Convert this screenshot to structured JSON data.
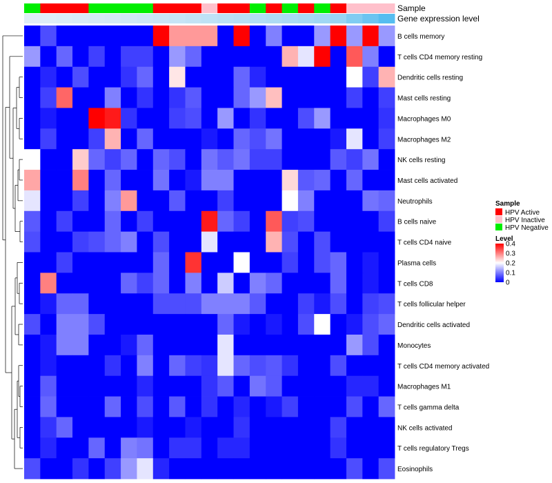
{
  "chart_data": {
    "type": "heatmap",
    "title": "",
    "annotation_rows": [
      "Sample",
      "Gene expression level"
    ],
    "row_labels": [
      "B cells memory",
      "T cells CD4 memory resting",
      "Dendritic cells resting",
      "Mast cells resting",
      "Macrophages M0",
      "Macrophages M2",
      "NK cells resting",
      "Mast cells activated",
      "Neutrophils",
      "B cells naive",
      "T cells CD4 naive",
      "Plasma cells",
      "T cells CD8",
      "T cells follicular helper",
      "Dendritic cells activated",
      "Monocytes",
      "T cells CD4 memory activated",
      "Macrophages M1",
      "T cells gamma delta",
      "NK cells activated",
      "T cells regulatory  Tregs",
      "Eosinophils"
    ],
    "sample_annotation": [
      "HPV Negative",
      "HPV Active",
      "HPV Active",
      "HPV Active",
      "HPV Negative",
      "HPV Negative",
      "HPV Negative",
      "HPV Negative",
      "HPV Active",
      "HPV Active",
      "HPV Active",
      "HPV Inactive",
      "HPV Active",
      "HPV Active",
      "HPV Negative",
      "HPV Active",
      "HPV Negative",
      "HPV Active",
      "HPV Negative",
      "HPV Active",
      "HPV Inactive",
      "HPV Inactive",
      "HPV Inactive"
    ],
    "expression_annotation": [
      0.02,
      0.03,
      0.05,
      0.07,
      0.09,
      0.11,
      0.13,
      0.15,
      0.17,
      0.19,
      0.22,
      0.25,
      0.28,
      0.31,
      0.34,
      0.37,
      0.4,
      0.43,
      0.47,
      0.52,
      0.7,
      0.85,
      1.0
    ],
    "values": [
      [
        0,
        0.06,
        0,
        0,
        0,
        0,
        0,
        0,
        0.4,
        0.28,
        0.28,
        0.28,
        0,
        0.4,
        0,
        0.1,
        0,
        0,
        0.12,
        0.4,
        0.12,
        0.4,
        0.12
      ],
      [
        0.12,
        0,
        0.08,
        0,
        0.05,
        0,
        0.05,
        0.05,
        0,
        0.12,
        0.08,
        0,
        0,
        0,
        0,
        0,
        0.26,
        0.18,
        0.4,
        0,
        0.33,
        0.1,
        0
      ],
      [
        0,
        0.03,
        0,
        0.06,
        0,
        0,
        0.04,
        0.08,
        0,
        0.22,
        0,
        0,
        0,
        0.08,
        0.03,
        0,
        0,
        0,
        0,
        0,
        0.2,
        0.05,
        0.26
      ],
      [
        0,
        0.05,
        0.32,
        0,
        0,
        0.1,
        0,
        0.04,
        0,
        0.04,
        0.07,
        0,
        0,
        0.08,
        0.12,
        0.25,
        0,
        0,
        0,
        0,
        0.05,
        0,
        0.05
      ],
      [
        0,
        0.02,
        0,
        0,
        0.4,
        0.38,
        0.04,
        0,
        0,
        0.05,
        0.06,
        0,
        0.12,
        0,
        0.04,
        0,
        0,
        0.06,
        0.12,
        0,
        0,
        0,
        0.04
      ],
      [
        0,
        0.05,
        0,
        0,
        0.05,
        0.26,
        0,
        0.08,
        0,
        0,
        0,
        0.02,
        0,
        0.08,
        0.06,
        0.09,
        0,
        0,
        0,
        0.02,
        0.18,
        0,
        0.05
      ],
      [
        0.2,
        0,
        0,
        0.24,
        0.08,
        0.05,
        0.08,
        0,
        0.08,
        0.06,
        0,
        0.09,
        0.07,
        0.09,
        0.05,
        0.05,
        0,
        0,
        0,
        0.07,
        0.05,
        0.09,
        0
      ],
      [
        0.27,
        0,
        0,
        0.3,
        0,
        0.08,
        0,
        0,
        0.09,
        0,
        0.02,
        0.1,
        0.1,
        0,
        0,
        0,
        0.23,
        0.07,
        0.08,
        0,
        0.08,
        0,
        0
      ],
      [
        0.18,
        0,
        0,
        0.05,
        0,
        0.1,
        0.28,
        0,
        0,
        0.07,
        0,
        0,
        0.05,
        0,
        0,
        0,
        0.2,
        0.1,
        0,
        0,
        0,
        0.09,
        0.08
      ],
      [
        0.07,
        0,
        0.05,
        0,
        0,
        0.08,
        0,
        0.05,
        0,
        0,
        0,
        0.38,
        0.08,
        0.05,
        0,
        0.33,
        0.05,
        0.06,
        0,
        0,
        0,
        0,
        0.05
      ],
      [
        0.06,
        0,
        0,
        0.05,
        0.06,
        0.08,
        0.1,
        0,
        0.06,
        0,
        0,
        0.18,
        0,
        0,
        0,
        0.26,
        0.06,
        0,
        0.06,
        0,
        0,
        0,
        0
      ],
      [
        0,
        0,
        0.05,
        0,
        0,
        0,
        0,
        0,
        0.08,
        0,
        0.36,
        0,
        0,
        0.2,
        0,
        0,
        0.05,
        0,
        0.06,
        0.08,
        0,
        0.02,
        0
      ],
      [
        0,
        0.3,
        0,
        0,
        0,
        0,
        0.08,
        0.05,
        0.08,
        0,
        0.1,
        0,
        0.16,
        0,
        0.1,
        0.08,
        0,
        0,
        0,
        0.08,
        0,
        0.02,
        0
      ],
      [
        0,
        0.02,
        0.08,
        0.08,
        0,
        0,
        0,
        0,
        0.06,
        0.06,
        0.06,
        0.1,
        0.1,
        0.1,
        0.07,
        0,
        0,
        0.05,
        0.02,
        0.06,
        0,
        0.05,
        0.06
      ],
      [
        0.06,
        0,
        0.1,
        0.1,
        0.06,
        0,
        0,
        0,
        0,
        0,
        0,
        0,
        0.08,
        0.02,
        0,
        0.02,
        0,
        0.06,
        0.2,
        0,
        0.02,
        0.06,
        0.08
      ],
      [
        0,
        0.02,
        0.1,
        0.1,
        0,
        0,
        0.02,
        0.08,
        0,
        0,
        0,
        0,
        0.18,
        0,
        0,
        0,
        0,
        0,
        0,
        0,
        0.12,
        0.06,
        0
      ],
      [
        0,
        0.02,
        0,
        0,
        0,
        0.04,
        0,
        0.1,
        0,
        0.08,
        0.05,
        0.04,
        0.18,
        0.08,
        0.06,
        0.07,
        0.04,
        0,
        0,
        0.06,
        0,
        0,
        0
      ],
      [
        0,
        0.07,
        0,
        0,
        0,
        0,
        0,
        0.03,
        0,
        0,
        0,
        0.04,
        0.07,
        0,
        0.09,
        0.07,
        0,
        0,
        0,
        0,
        0.03,
        0.03,
        0
      ],
      [
        0,
        0.08,
        0,
        0,
        0,
        0.08,
        0,
        0.06,
        0,
        0.07,
        0,
        0.04,
        0,
        0.03,
        0,
        0.02,
        0.05,
        0,
        0,
        0,
        0.06,
        0,
        0.08
      ],
      [
        0,
        0.04,
        0.08,
        0,
        0,
        0,
        0,
        0.02,
        0,
        0,
        0.02,
        0,
        0,
        0.04,
        0,
        0,
        0,
        0,
        0,
        0.05,
        0,
        0,
        0
      ],
      [
        0,
        0.03,
        0,
        0,
        0.08,
        0,
        0.1,
        0.09,
        0,
        0.04,
        0.04,
        0,
        0.03,
        0.03,
        0,
        0,
        0,
        0,
        0,
        0.04,
        0,
        0,
        0
      ],
      [
        0.06,
        0,
        0,
        0.04,
        0,
        0.05,
        0.12,
        0.18,
        0.03,
        0,
        0,
        0,
        0,
        0,
        0,
        0,
        0,
        0,
        0,
        0,
        0.06,
        0,
        0.06
      ]
    ],
    "color_scale": {
      "min": 0,
      "max": 0.4,
      "low": "#0000ff",
      "mid": "#ffffff",
      "high": "#ff0000"
    },
    "legends": {
      "sample": {
        "title": "Sample",
        "entries": [
          {
            "label": "HPV Active",
            "color": "#ff0000"
          },
          {
            "label": "HPV Inactive",
            "color": "#ffc0cb"
          },
          {
            "label": "HPV Negative",
            "color": "#00ee00"
          }
        ]
      },
      "level": {
        "title": "Level",
        "ticks": [
          "0.4",
          "0.3",
          "0.2",
          "0.1",
          "0"
        ]
      }
    }
  }
}
